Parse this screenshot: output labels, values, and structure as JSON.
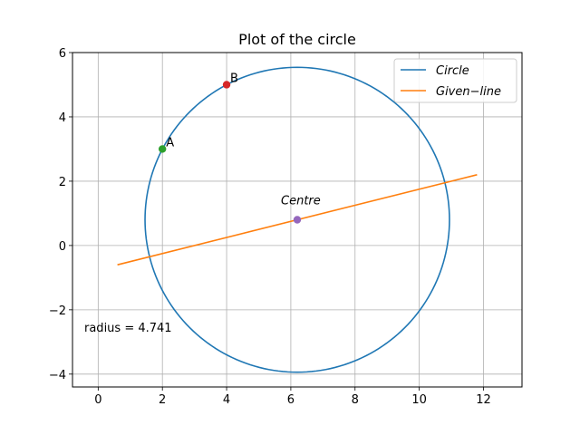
{
  "chart_data": {
    "type": "line",
    "title": "Plot of the circle",
    "xlabel": "",
    "ylabel": "",
    "xlim": [
      -0.8,
      13.2
    ],
    "ylim": [
      -4.4,
      6
    ],
    "xticks": [
      0,
      2,
      4,
      6,
      8,
      10,
      12
    ],
    "yticks": [
      -4,
      -2,
      0,
      2,
      4,
      6
    ],
    "xtick_labels": [
      "0",
      "2",
      "4",
      "6",
      "8",
      "10",
      "12"
    ],
    "ytick_labels": [
      "−4",
      "−2",
      "0",
      "2",
      "4",
      "6"
    ],
    "grid": true,
    "legend_position": "top-right",
    "circle": {
      "name": "Circle",
      "legend_label": "Circle",
      "center": [
        6.2,
        0.8
      ],
      "radius": 4.741,
      "color": "#1f77b4"
    },
    "line": {
      "name": "Given-line",
      "legend_label": "Given−line",
      "x": [
        0.6,
        11.8
      ],
      "y": [
        -0.6,
        2.2
      ],
      "color": "#ff7f0e"
    },
    "points": [
      {
        "label": "A",
        "x": 2,
        "y": 3,
        "color": "#2ca02c"
      },
      {
        "label": "B",
        "x": 4,
        "y": 5,
        "color": "#d62728"
      },
      {
        "label": "Centre",
        "x": 6.2,
        "y": 0.8,
        "color": "#9467bd"
      }
    ],
    "annotation": "radius = 4.741"
  }
}
